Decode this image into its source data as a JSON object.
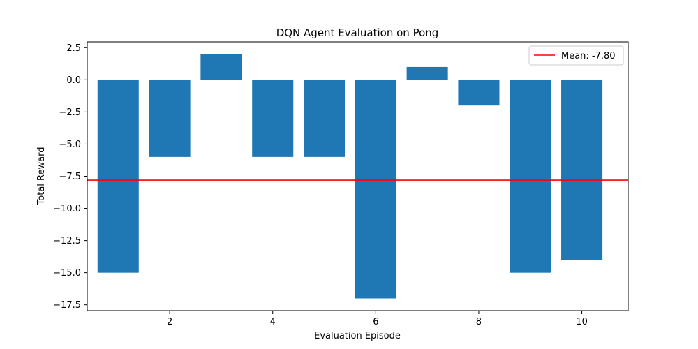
{
  "chart_data": {
    "type": "bar",
    "title": "DQN Agent Evaluation on Pong",
    "xlabel": "Evaluation Episode",
    "ylabel": "Total Reward",
    "x": [
      1,
      2,
      3,
      4,
      5,
      6,
      7,
      8,
      9,
      10
    ],
    "values": [
      -15,
      -6,
      2,
      -6,
      -6,
      -17,
      1,
      -2,
      -15,
      -14
    ],
    "xlim": [
      0.4,
      10.9
    ],
    "ylim": [
      -17.95,
      2.95
    ],
    "xticks": [
      2,
      4,
      6,
      8,
      10
    ],
    "xtick_labels": [
      "2",
      "4",
      "6",
      "8",
      "10"
    ],
    "yticks": [
      2.5,
      0.0,
      -2.5,
      -5.0,
      -7.5,
      -10.0,
      -12.5,
      -15.0,
      -17.5
    ],
    "ytick_labels": [
      "2.5",
      "0.0",
      "−2.5",
      "−5.0",
      "−7.5",
      "−10.0",
      "−12.5",
      "−15.0",
      "−17.5"
    ],
    "bar_color": "#1f77b4",
    "grid": false,
    "reference_line": {
      "value": -7.8,
      "label": "Mean: -7.80",
      "color": "#ff0000"
    },
    "legend": {
      "position": "top-right",
      "entries": [
        "Mean: -7.80"
      ]
    }
  }
}
